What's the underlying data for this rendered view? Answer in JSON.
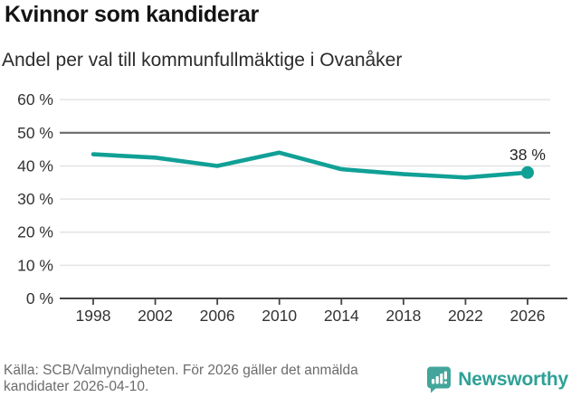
{
  "header": {
    "title": "Kvinnor som kandiderar",
    "subtitle": "Andel per val till kommunfullmäktige i Ovanåker"
  },
  "chart_data": {
    "type": "line",
    "title": "Kvinnor som kandiderar",
    "subtitle": "Andel per val till kommunfullmäktige i Ovanåker",
    "x": [
      1998,
      2002,
      2006,
      2010,
      2014,
      2018,
      2022,
      2026
    ],
    "values": [
      43.5,
      42.5,
      40,
      44,
      39,
      37.5,
      36.5,
      38
    ],
    "xlabel": "",
    "ylabel": "",
    "ylim": [
      0,
      60
    ],
    "ytick_step": 10,
    "ytick_labels": [
      "0 %",
      "10 %",
      "20 %",
      "30 %",
      "40 %",
      "50 %",
      "60 %"
    ],
    "xtick_labels": [
      "1998",
      "2002",
      "2006",
      "2010",
      "2014",
      "2018",
      "2022",
      "2026"
    ],
    "reference_line": 50,
    "grid": true,
    "legend": "none",
    "last_point_label": "38 %"
  },
  "footer": {
    "source": "Källa: SCB/Valmyndigheten. För 2026 gäller det anmälda kandidater 2026-04-10.",
    "brand": "Newsworthy"
  },
  "colors": {
    "accent": "#11a096",
    "reference_line": "#6a6a6a",
    "grid": "#e3e3e3",
    "axis": "#444444",
    "tick_text": "#333333",
    "annotation_text": "#222222",
    "brand": "#2ea196",
    "logo_bubble": "#43a59b"
  }
}
